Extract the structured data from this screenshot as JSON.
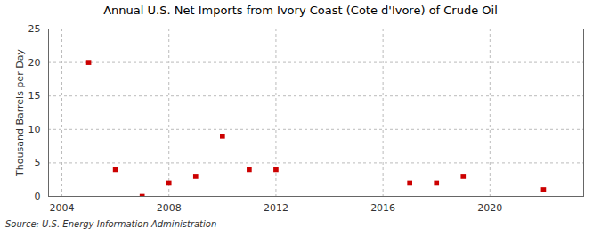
{
  "chart_data": {
    "type": "scatter",
    "title": "Annual U.S. Net Imports from Ivory Coast (Cote d'Ivore) of Crude Oil",
    "ylabel": "Thousand Barrels per Day",
    "source": "Source: U.S. Energy Information Administration",
    "x": [
      2005,
      2006,
      2007,
      2008,
      2009,
      2010,
      2011,
      2012,
      2017,
      2018,
      2019,
      2022
    ],
    "values": [
      20,
      4,
      0,
      2,
      3,
      9,
      4,
      4,
      2,
      2,
      3,
      1
    ],
    "color": "#cc0000",
    "marker": "square",
    "xlim": [
      2003.5,
      2023.5
    ],
    "xticks": [
      2004,
      2008,
      2012,
      2016,
      2020
    ],
    "ylim": [
      0,
      25
    ],
    "yticks": [
      0,
      5,
      10,
      15,
      20,
      25
    ],
    "grid": true
  }
}
